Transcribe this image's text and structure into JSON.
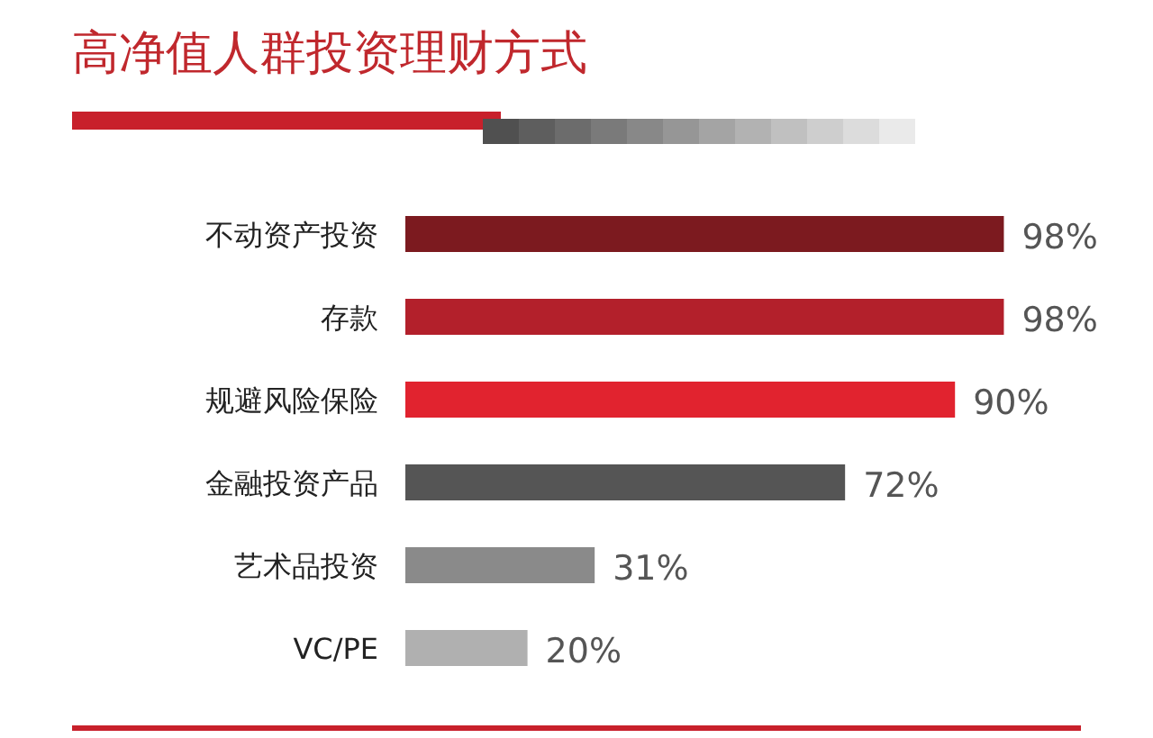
{
  "chart_data": {
    "type": "bar",
    "orientation": "horizontal",
    "title": "高净值人群投资理财方式",
    "categories": [
      "不动资产投资",
      "存款",
      "规避风险保险",
      "金融投资产品",
      "艺术品投资",
      "VC/PE"
    ],
    "values": [
      98,
      98,
      90,
      72,
      31,
      20
    ],
    "colors": [
      "#7c1a1f",
      "#b3202b",
      "#e1232f",
      "#555555",
      "#8a8a8a",
      "#b0b0b0"
    ],
    "value_labels": [
      "98%",
      "98%",
      "90%",
      "72%",
      "31%",
      "20%"
    ]
  }
}
